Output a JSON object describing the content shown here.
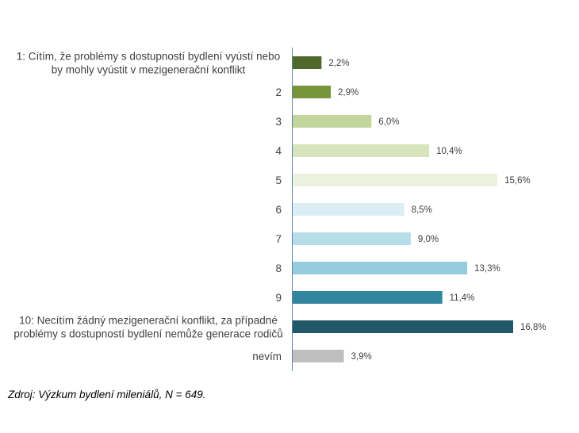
{
  "chart_data": {
    "type": "bar",
    "orientation": "horizontal",
    "categories": [
      [
        "1: Cítím, že problémy s dostupností bydlení vyústí nebo",
        "by mohly vyústit v mezigenerační konflikt"
      ],
      [
        "2"
      ],
      [
        "3"
      ],
      [
        "4"
      ],
      [
        "5"
      ],
      [
        "6"
      ],
      [
        "7"
      ],
      [
        "8"
      ],
      [
        "9"
      ],
      [
        "10: Necítím žádný mezigenerační konflikt, za případné",
        "problémy s dostupností bydlení nemůže generace rodičů"
      ],
      [
        "nevím"
      ]
    ],
    "values": [
      2.2,
      2.9,
      6.0,
      10.4,
      15.6,
      8.5,
      9.0,
      13.3,
      11.4,
      16.8,
      3.9
    ],
    "value_labels": [
      "2,2%",
      "2,9%",
      "6,0%",
      "10,4%",
      "15,6%",
      "8,5%",
      "9,0%",
      "13,3%",
      "11,4%",
      "16,8%",
      "3,9%"
    ],
    "colors": [
      "#4e6a2a",
      "#77963a",
      "#c2d69b",
      "#d8e4bc",
      "#ebf1de",
      "#dbeef4",
      "#b7dee8",
      "#93cddd",
      "#31859c",
      "#215968",
      "#bfbfbf"
    ],
    "xlim": [
      0,
      16.8
    ],
    "grid": false,
    "legend": "none"
  },
  "source_note": "Zdroj: Výzkum bydlení mileniálů, N = 649."
}
